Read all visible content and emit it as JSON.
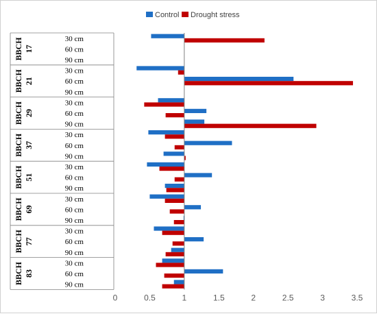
{
  "chart_data": {
    "type": "bar",
    "orientation": "horizontal",
    "legend_position": "top",
    "grid": false,
    "xlim": [
      0,
      3.5
    ],
    "x_ticks": [
      "0",
      "0.5",
      "1",
      "1.5",
      "2",
      "2.5",
      "3",
      "3.5"
    ],
    "groups": [
      {
        "label": "BBCH 17",
        "rows": [
          "30 cm",
          "60 cm",
          "90 cm"
        ]
      },
      {
        "label": "BBCH 21",
        "rows": [
          "30 cm",
          "60 cm",
          "90 cm"
        ]
      },
      {
        "label": "BBCH 29",
        "rows": [
          "30 cm",
          "60 cm",
          "90 cm"
        ]
      },
      {
        "label": "BBCH 37",
        "rows": [
          "30 cm",
          "60 cm",
          "90 cm"
        ]
      },
      {
        "label": "BBCH 51",
        "rows": [
          "30 cm",
          "60 cm",
          "90 cm"
        ]
      },
      {
        "label": "BBCH 69",
        "rows": [
          "30 cm",
          "60 cm",
          "90 cm"
        ]
      },
      {
        "label": "BBCH 77",
        "rows": [
          "30 cm",
          "60 cm",
          "90 cm"
        ]
      },
      {
        "label": "BBCH 83",
        "rows": [
          "30 cm",
          "60 cm",
          "90 cm"
        ]
      }
    ],
    "series": [
      {
        "name": "Control",
        "color": "#1f6fc5",
        "values": [
          0.52,
          null,
          null,
          0.31,
          2.58,
          null,
          0.62,
          1.32,
          1.29,
          0.48,
          1.69,
          0.7,
          0.46,
          1.4,
          0.72,
          0.5,
          1.24,
          0.99,
          0.56,
          1.28,
          0.81,
          0.68,
          1.56,
          0.85
        ]
      },
      {
        "name": "Drought stress",
        "color": "#c00000",
        "values": [
          2.16,
          null,
          null,
          0.91,
          3.44,
          null,
          0.42,
          0.73,
          2.91,
          0.72,
          0.86,
          1.02,
          0.64,
          0.86,
          0.74,
          0.72,
          0.79,
          0.85,
          0.68,
          0.83,
          0.73,
          0.59,
          0.71,
          0.68
        ]
      }
    ]
  }
}
